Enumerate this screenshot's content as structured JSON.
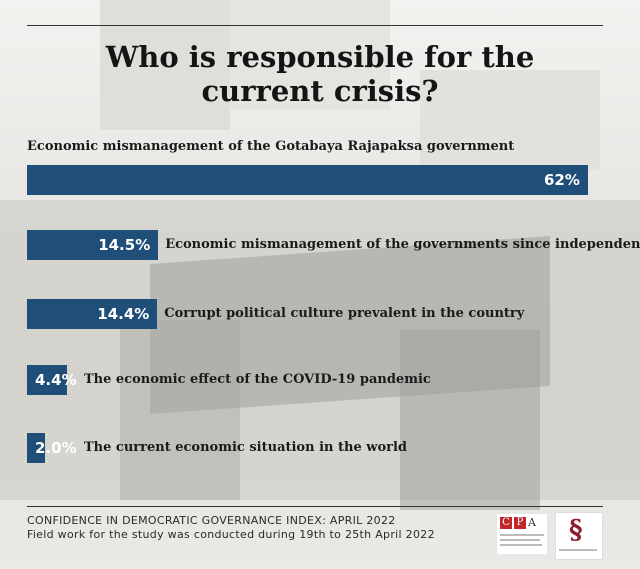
{
  "title_line1": "Who is responsible for the",
  "title_line2": "current crisis?",
  "chart_data": {
    "type": "bar",
    "orientation": "horizontal",
    "title": "Who is responsible for the current crisis?",
    "categories": [
      "Economic mismanagement of the Gotabaya Rajapaksa government",
      "Economic mismanagement of the governments since independence",
      "Corrupt political culture prevalent in the country",
      "The economic effect of the COVID-19 pandemic",
      "The current economic situation in the world"
    ],
    "values": [
      62,
      14.5,
      14.4,
      4.4,
      2.0
    ],
    "value_labels": [
      "62%",
      "14.5%",
      "14.4%",
      "4.4%",
      "2.0%"
    ],
    "xlim": [
      0,
      62
    ],
    "bar_color": "#1f4e79",
    "grid": false,
    "legend": "none"
  },
  "footer": {
    "line1": "CONFIDENCE IN DEMOCRATIC GOVERNANCE INDEX: APRIL 2022",
    "line2": "Field work for the study was conducted during 19th to 25th April 2022"
  },
  "logos": {
    "cpa": {
      "letters": [
        "C",
        "P",
        "A"
      ]
    }
  },
  "colors": {
    "bar": "#1f4e79",
    "cpa_red": "#c0272d",
    "ssr_red": "#8c1c2c"
  }
}
